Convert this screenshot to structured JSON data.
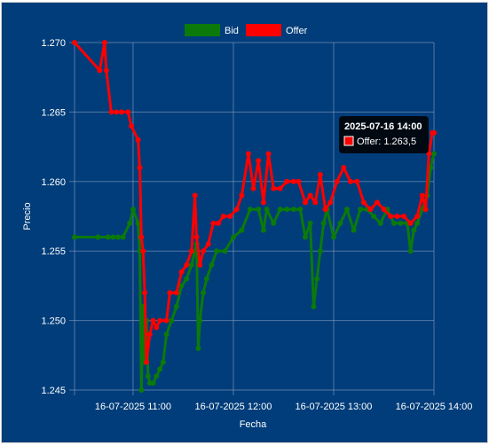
{
  "chart_data": {
    "type": "line",
    "title": "",
    "xlabel": "Fecha",
    "ylabel": "Precio",
    "ylim": [
      1.245,
      1.27
    ],
    "xlim": [
      "2025-07-16 10:25",
      "2025-07-16 14:00"
    ],
    "y_ticks": [
      "1.245",
      "1.250",
      "1.255",
      "1.260",
      "1.265",
      "1.270"
    ],
    "x_ticks": [
      "16-07-2025 11:00",
      "16-07-2025 12:00",
      "16-07-2025 13:00",
      "16-07-2025 14:00"
    ],
    "grid": true,
    "legend": "top-center",
    "colors": {
      "background": "#003d7a",
      "grid": "#8a9fbf",
      "bid": "#0b7a0b",
      "offer": "#ff0000"
    },
    "series": [
      {
        "name": "Bid",
        "color": "#0b7a0b",
        "points": [
          [
            "2025-07-16 10:25",
            1.256
          ],
          [
            "2025-07-16 10:39",
            1.256
          ],
          [
            "2025-07-16 10:45",
            1.256
          ],
          [
            "2025-07-16 10:48",
            1.256
          ],
          [
            "2025-07-16 10:51",
            1.256
          ],
          [
            "2025-07-16 10:54",
            1.256
          ],
          [
            "2025-07-16 10:58",
            1.257
          ],
          [
            "2025-07-16 11:00",
            1.258
          ],
          [
            "2025-07-16 11:03",
            1.257
          ],
          [
            "2025-07-16 11:04",
            1.255
          ],
          [
            "2025-07-16 11:05",
            1.245
          ],
          [
            "2025-07-16 11:06",
            1.251
          ],
          [
            "2025-07-16 11:07",
            1.247
          ],
          [
            "2025-07-16 11:08",
            1.25
          ],
          [
            "2025-07-16 11:09",
            1.246
          ],
          [
            "2025-07-16 11:10",
            1.2455
          ],
          [
            "2025-07-16 11:12",
            1.2455
          ],
          [
            "2025-07-16 11:14",
            1.246
          ],
          [
            "2025-07-16 11:16",
            1.2465
          ],
          [
            "2025-07-16 11:18",
            1.247
          ],
          [
            "2025-07-16 11:20",
            1.249
          ],
          [
            "2025-07-16 11:23",
            1.25
          ],
          [
            "2025-07-16 11:26",
            1.251
          ],
          [
            "2025-07-16 11:29",
            1.2525
          ],
          [
            "2025-07-16 11:32",
            1.253
          ],
          [
            "2025-07-16 11:35",
            1.254
          ],
          [
            "2025-07-16 11:38",
            1.2555
          ],
          [
            "2025-07-16 11:39",
            1.248
          ],
          [
            "2025-07-16 11:40",
            1.25
          ],
          [
            "2025-07-16 11:42",
            1.252
          ],
          [
            "2025-07-16 11:44",
            1.253
          ],
          [
            "2025-07-16 11:47",
            1.254
          ],
          [
            "2025-07-16 11:50",
            1.255
          ],
          [
            "2025-07-16 11:55",
            1.255
          ],
          [
            "2025-07-16 12:00",
            1.256
          ],
          [
            "2025-07-16 12:05",
            1.2565
          ],
          [
            "2025-07-16 12:10",
            1.258
          ],
          [
            "2025-07-16 12:15",
            1.258
          ],
          [
            "2025-07-16 12:18",
            1.2565
          ],
          [
            "2025-07-16 12:20",
            1.258
          ],
          [
            "2025-07-16 12:24",
            1.257
          ],
          [
            "2025-07-16 12:28",
            1.258
          ],
          [
            "2025-07-16 12:32",
            1.258
          ],
          [
            "2025-07-16 12:36",
            1.258
          ],
          [
            "2025-07-16 12:40",
            1.258
          ],
          [
            "2025-07-16 12:43",
            1.256
          ],
          [
            "2025-07-16 12:46",
            1.257
          ],
          [
            "2025-07-16 12:48",
            1.251
          ],
          [
            "2025-07-16 12:50",
            1.253
          ],
          [
            "2025-07-16 12:52",
            1.255
          ],
          [
            "2025-07-16 12:54",
            1.257
          ],
          [
            "2025-07-16 12:56",
            1.258
          ],
          [
            "2025-07-16 13:00",
            1.256
          ],
          [
            "2025-07-16 13:04",
            1.257
          ],
          [
            "2025-07-16 13:08",
            1.258
          ],
          [
            "2025-07-16 13:12",
            1.2565
          ],
          [
            "2025-07-16 13:16",
            1.258
          ],
          [
            "2025-07-16 13:20",
            1.258
          ],
          [
            "2025-07-16 13:24",
            1.2575
          ],
          [
            "2025-07-16 13:28",
            1.257
          ],
          [
            "2025-07-16 13:32",
            1.258
          ],
          [
            "2025-07-16 13:36",
            1.257
          ],
          [
            "2025-07-16 13:40",
            1.257
          ],
          [
            "2025-07-16 13:44",
            1.257
          ],
          [
            "2025-07-16 13:46",
            1.255
          ],
          [
            "2025-07-16 13:48",
            1.2565
          ],
          [
            "2025-07-16 13:50",
            1.257
          ],
          [
            "2025-07-16 13:53",
            1.258
          ],
          [
            "2025-07-16 13:56",
            1.259
          ],
          [
            "2025-07-16 13:58",
            1.261
          ],
          [
            "2025-07-16 14:00",
            1.262
          ]
        ]
      },
      {
        "name": "Offer",
        "color": "#ff0000",
        "points": [
          [
            "2025-07-16 10:25",
            1.27
          ],
          [
            "2025-07-16 10:40",
            1.268
          ],
          [
            "2025-07-16 10:43",
            1.27
          ],
          [
            "2025-07-16 10:44",
            1.268
          ],
          [
            "2025-07-16 10:47",
            1.265
          ],
          [
            "2025-07-16 10:50",
            1.265
          ],
          [
            "2025-07-16 10:53",
            1.265
          ],
          [
            "2025-07-16 10:57",
            1.265
          ],
          [
            "2025-07-16 10:59",
            1.264
          ],
          [
            "2025-07-16 11:03",
            1.263
          ],
          [
            "2025-07-16 11:04",
            1.261
          ],
          [
            "2025-07-16 11:05",
            1.256
          ],
          [
            "2025-07-16 11:06",
            1.255
          ],
          [
            "2025-07-16 11:07",
            1.252
          ],
          [
            "2025-07-16 11:08",
            1.247
          ],
          [
            "2025-07-16 11:10",
            1.249
          ],
          [
            "2025-07-16 11:12",
            1.25
          ],
          [
            "2025-07-16 11:14",
            1.2495
          ],
          [
            "2025-07-16 11:16",
            1.25
          ],
          [
            "2025-07-16 11:20",
            1.25
          ],
          [
            "2025-07-16 11:22",
            1.252
          ],
          [
            "2025-07-16 11:26",
            1.252
          ],
          [
            "2025-07-16 11:29",
            1.2535
          ],
          [
            "2025-07-16 11:32",
            1.254
          ],
          [
            "2025-07-16 11:35",
            1.255
          ],
          [
            "2025-07-16 11:37",
            1.259
          ],
          [
            "2025-07-16 11:38",
            1.256
          ],
          [
            "2025-07-16 11:40",
            1.254
          ],
          [
            "2025-07-16 11:42",
            1.255
          ],
          [
            "2025-07-16 11:45",
            1.2555
          ],
          [
            "2025-07-16 11:48",
            1.257
          ],
          [
            "2025-07-16 11:51",
            1.257
          ],
          [
            "2025-07-16 11:54",
            1.2575
          ],
          [
            "2025-07-16 11:58",
            1.2575
          ],
          [
            "2025-07-16 12:02",
            1.258
          ],
          [
            "2025-07-16 12:05",
            1.259
          ],
          [
            "2025-07-16 12:09",
            1.262
          ],
          [
            "2025-07-16 12:12",
            1.2595
          ],
          [
            "2025-07-16 12:15",
            1.2615
          ],
          [
            "2025-07-16 12:18",
            1.2585
          ],
          [
            "2025-07-16 12:21",
            1.262
          ],
          [
            "2025-07-16 12:24",
            1.2595
          ],
          [
            "2025-07-16 12:28",
            1.2595
          ],
          [
            "2025-07-16 12:32",
            1.26
          ],
          [
            "2025-07-16 12:36",
            1.26
          ],
          [
            "2025-07-16 12:39",
            1.26
          ],
          [
            "2025-07-16 12:43",
            1.2585
          ],
          [
            "2025-07-16 12:46",
            1.259
          ],
          [
            "2025-07-16 12:49",
            1.2585
          ],
          [
            "2025-07-16 12:52",
            1.2605
          ],
          [
            "2025-07-16 12:55",
            1.258
          ],
          [
            "2025-07-16 12:58",
            1.2585
          ],
          [
            "2025-07-16 13:02",
            1.26
          ],
          [
            "2025-07-16 13:06",
            1.261
          ],
          [
            "2025-07-16 13:10",
            1.26
          ],
          [
            "2025-07-16 13:14",
            1.26
          ],
          [
            "2025-07-16 13:18",
            1.2585
          ],
          [
            "2025-07-16 13:22",
            1.258
          ],
          [
            "2025-07-16 13:26",
            1.2585
          ],
          [
            "2025-07-16 13:30",
            1.258
          ],
          [
            "2025-07-16 13:34",
            1.2575
          ],
          [
            "2025-07-16 13:38",
            1.2575
          ],
          [
            "2025-07-16 13:42",
            1.2575
          ],
          [
            "2025-07-16 13:46",
            1.257
          ],
          [
            "2025-07-16 13:50",
            1.2575
          ],
          [
            "2025-07-16 13:53",
            1.259
          ],
          [
            "2025-07-16 13:55",
            1.258
          ],
          [
            "2025-07-16 13:57",
            1.262
          ],
          [
            "2025-07-16 13:59",
            1.2635
          ],
          [
            "2025-07-16 14:00",
            1.2635
          ]
        ]
      }
    ],
    "tooltip": {
      "title": "2025-07-16 14:00",
      "label": "Offer: 1.263,5",
      "series": "Offer"
    }
  }
}
